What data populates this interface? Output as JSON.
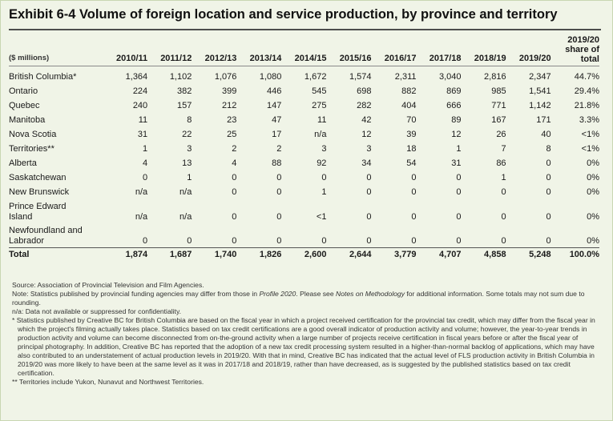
{
  "title": "Exhibit 6-4  Volume of foreign location and service production, by province and territory",
  "table": {
    "unit_label": "($ millions)",
    "year_columns": [
      "2010/11",
      "2011/12",
      "2012/13",
      "2013/14",
      "2014/15",
      "2015/16",
      "2016/17",
      "2017/18",
      "2018/19",
      "2019/20"
    ],
    "share_header_lines": [
      "2019/20",
      "share of",
      "total"
    ],
    "rows": [
      {
        "name": "British Columbia*",
        "values": [
          "1,364",
          "1,102",
          "1,076",
          "1,080",
          "1,672",
          "1,574",
          "2,311",
          "3,040",
          "2,816",
          "2,347"
        ],
        "share": "44.7%"
      },
      {
        "name": "Ontario",
        "values": [
          "224",
          "382",
          "399",
          "446",
          "545",
          "698",
          "882",
          "869",
          "985",
          "1,541"
        ],
        "share": "29.4%"
      },
      {
        "name": "Quebec",
        "values": [
          "240",
          "157",
          "212",
          "147",
          "275",
          "282",
          "404",
          "666",
          "771",
          "1,142"
        ],
        "share": "21.8%"
      },
      {
        "name": "Manitoba",
        "values": [
          "11",
          "8",
          "23",
          "47",
          "11",
          "42",
          "70",
          "89",
          "167",
          "171"
        ],
        "share": "3.3%"
      },
      {
        "name": "Nova Scotia",
        "values": [
          "31",
          "22",
          "25",
          "17",
          "n/a",
          "12",
          "39",
          "12",
          "26",
          "40"
        ],
        "share": "<1%"
      },
      {
        "name": "Territories**",
        "values": [
          "1",
          "3",
          "2",
          "2",
          "3",
          "3",
          "18",
          "1",
          "7",
          "8"
        ],
        "share": "<1%"
      },
      {
        "name": "Alberta",
        "values": [
          "4",
          "13",
          "4",
          "88",
          "92",
          "34",
          "54",
          "31",
          "86",
          "0"
        ],
        "share": "0%"
      },
      {
        "name": "Saskatchewan",
        "values": [
          "0",
          "1",
          "0",
          "0",
          "0",
          "0",
          "0",
          "0",
          "1",
          "0"
        ],
        "share": "0%"
      },
      {
        "name": "New Brunswick",
        "values": [
          "n/a",
          "n/a",
          "0",
          "0",
          "1",
          "0",
          "0",
          "0",
          "0",
          "0"
        ],
        "share": "0%"
      },
      {
        "name_lines": [
          "Prince Edward",
          "Island"
        ],
        "values": [
          "n/a",
          "n/a",
          "0",
          "0",
          "<1",
          "0",
          "0",
          "0",
          "0",
          "0"
        ],
        "share": "0%"
      },
      {
        "name_lines": [
          "Newfoundland and",
          "Labrador"
        ],
        "values": [
          "0",
          "0",
          "0",
          "0",
          "0",
          "0",
          "0",
          "0",
          "0",
          "0"
        ],
        "share": "0%"
      }
    ],
    "total": {
      "name": "Total",
      "values": [
        "1,874",
        "1,687",
        "1,740",
        "1,826",
        "2,600",
        "2,644",
        "3,779",
        "4,707",
        "4,858",
        "5,248"
      ],
      "share": "100.0%"
    }
  },
  "notes": {
    "source": "Source: Association of Provincial Television and Film Agencies.",
    "note_a": "Note: Statistics published by provincial funding agencies may differ from those in ",
    "note_b": "Profile 2020",
    "note_c": ". Please see ",
    "note_d": "Notes on Methodology",
    "note_e": " for additional information. Some totals may not sum due to rounding.",
    "na": "n/a: Data not available or suppressed for confidentiality.",
    "star": "* Statistics published by Creative BC for British Columbia are based on the fiscal year in which a project received certification for the provincial tax credit, which may differ from the fiscal year in which the project's filming actually takes place. Statistics based on tax credit certifications are a good overall indicator of production activity and volume; however, the year-to-year trends in production activity and volume can become disconnected from on-the-ground activity when a large number of projects receive certification in fiscal years before or after the fiscal year of principal photography. In addition, Creative BC has reported that the adoption of a new tax credit processing system resulted in a higher-than-normal backlog of applications, which may have also contributed to an understatement of actual production levels in 2019/20. With that in mind, Creative BC has indicated that the actual level of FLS production activity in British Columbia in 2019/20 was more likely to have been at the same level as it was in 2017/18 and 2018/19, rather than have decreased, as is suggested by the published statistics based on tax credit certification.",
    "double_star": "** Territories include Yukon, Nunavut and Northwest Territories."
  }
}
